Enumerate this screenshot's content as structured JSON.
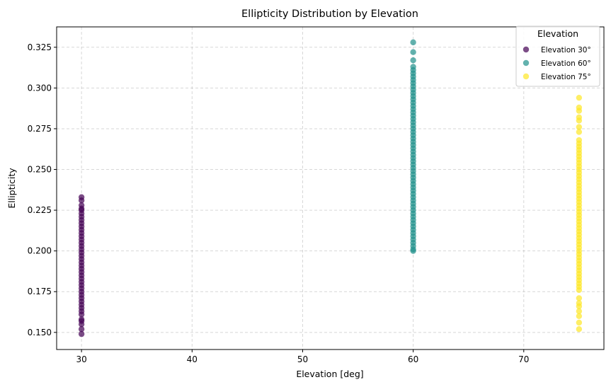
{
  "chart_data": {
    "type": "scatter",
    "title": "Ellipticity Distribution by Elevation",
    "xlabel": "Elevation [deg]",
    "ylabel": "Ellipticity",
    "xlim": [
      27.75,
      77.25
    ],
    "ylim": [
      0.1395,
      0.3375
    ],
    "xticks": [
      30,
      40,
      50,
      60,
      70
    ],
    "xtick_labels": [
      "30",
      "40",
      "50",
      "60",
      "70"
    ],
    "yticks": [
      0.15,
      0.175,
      0.2,
      0.225,
      0.25,
      0.275,
      0.3,
      0.325
    ],
    "ytick_labels": [
      "0.150",
      "0.175",
      "0.200",
      "0.225",
      "0.250",
      "0.275",
      "0.300",
      "0.325"
    ],
    "grid": true,
    "legend": {
      "title": "Elevation",
      "placement": "top-right"
    },
    "series": [
      {
        "name": "Elevation 30°",
        "color": "#440154",
        "x": 30,
        "y": [
          0.149,
          0.152,
          0.155,
          0.157,
          0.158,
          0.161,
          0.163,
          0.165,
          0.167,
          0.169,
          0.171,
          0.173,
          0.175,
          0.177,
          0.179,
          0.181,
          0.183,
          0.185,
          0.187,
          0.189,
          0.191,
          0.193,
          0.195,
          0.197,
          0.199,
          0.201,
          0.203,
          0.205,
          0.207,
          0.209,
          0.211,
          0.213,
          0.215,
          0.217,
          0.219,
          0.221,
          0.223,
          0.225,
          0.226,
          0.228,
          0.231,
          0.233
        ]
      },
      {
        "name": "Elevation 60°",
        "color": "#21918c",
        "x": 60,
        "y": [
          0.2,
          0.201,
          0.203,
          0.205,
          0.207,
          0.209,
          0.211,
          0.213,
          0.215,
          0.217,
          0.219,
          0.221,
          0.223,
          0.225,
          0.227,
          0.229,
          0.231,
          0.233,
          0.235,
          0.237,
          0.239,
          0.241,
          0.243,
          0.245,
          0.247,
          0.249,
          0.251,
          0.253,
          0.255,
          0.257,
          0.259,
          0.261,
          0.263,
          0.265,
          0.267,
          0.269,
          0.271,
          0.273,
          0.275,
          0.277,
          0.279,
          0.281,
          0.283,
          0.285,
          0.287,
          0.289,
          0.291,
          0.293,
          0.295,
          0.297,
          0.299,
          0.301,
          0.303,
          0.305,
          0.307,
          0.309,
          0.311,
          0.313,
          0.317,
          0.322,
          0.328
        ]
      },
      {
        "name": "Elevation 75°",
        "color": "#fde725",
        "x": 75,
        "y": [
          0.152,
          0.156,
          0.16,
          0.163,
          0.166,
          0.168,
          0.171,
          0.176,
          0.178,
          0.18,
          0.182,
          0.184,
          0.186,
          0.188,
          0.19,
          0.192,
          0.194,
          0.196,
          0.198,
          0.2,
          0.202,
          0.204,
          0.206,
          0.208,
          0.21,
          0.212,
          0.214,
          0.216,
          0.218,
          0.22,
          0.222,
          0.224,
          0.226,
          0.228,
          0.23,
          0.232,
          0.234,
          0.236,
          0.238,
          0.24,
          0.242,
          0.244,
          0.246,
          0.248,
          0.25,
          0.252,
          0.254,
          0.256,
          0.258,
          0.26,
          0.262,
          0.264,
          0.266,
          0.268,
          0.273,
          0.276,
          0.28,
          0.282,
          0.286,
          0.288,
          0.294
        ]
      }
    ]
  }
}
